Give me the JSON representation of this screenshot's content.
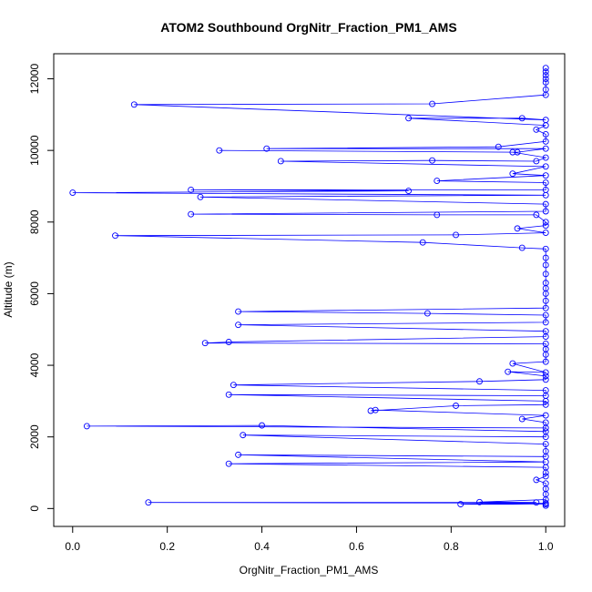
{
  "chart_data": {
    "type": "line",
    "title": "ATOM2 Southbound OrgNitr_Fraction_PM1_AMS",
    "xlabel": "OrgNitr_Fraction_PM1_AMS",
    "ylabel": "Altitude (m)",
    "xlim": [
      -0.04,
      1.04
    ],
    "ylim": [
      -500,
      12700
    ],
    "xticks": [
      0.0,
      0.2,
      0.4,
      0.6,
      0.8,
      1.0
    ],
    "xtick_labels": [
      "0.0",
      "0.2",
      "0.4",
      "0.6",
      "0.8",
      "1.0"
    ],
    "yticks": [
      0,
      2000,
      4000,
      6000,
      8000,
      10000,
      12000
    ],
    "ytick_labels": [
      "0",
      "2000",
      "4000",
      "6000",
      "8000",
      "10000",
      "12000"
    ],
    "grid": false,
    "series": [
      {
        "name": "OrgNitr_Fraction_PM1_AMS",
        "color": "#0000ff",
        "marker": "open-circle",
        "points": [
          [
            1.0,
            80
          ],
          [
            1.0,
            120
          ],
          [
            0.82,
            120
          ],
          [
            1.0,
            150
          ],
          [
            0.16,
            170
          ],
          [
            0.98,
            170
          ],
          [
            0.86,
            180
          ],
          [
            1.0,
            250
          ],
          [
            1.0,
            400
          ],
          [
            1.0,
            550
          ],
          [
            1.0,
            700
          ],
          [
            0.98,
            800
          ],
          [
            1.0,
            900
          ],
          [
            1.0,
            1000
          ],
          [
            1.0,
            1150
          ],
          [
            0.33,
            1250
          ],
          [
            1.0,
            1300
          ],
          [
            0.35,
            1500
          ],
          [
            1.0,
            1450
          ],
          [
            1.0,
            1600
          ],
          [
            1.0,
            1800
          ],
          [
            0.36,
            2050
          ],
          [
            1.0,
            2000
          ],
          [
            1.0,
            2150
          ],
          [
            0.4,
            2320
          ],
          [
            0.03,
            2300
          ],
          [
            1.0,
            2250
          ],
          [
            1.0,
            2400
          ],
          [
            0.95,
            2500
          ],
          [
            1.0,
            2600
          ],
          [
            0.64,
            2750
          ],
          [
            0.63,
            2730
          ],
          [
            0.81,
            2870
          ],
          [
            1.0,
            2900
          ],
          [
            1.0,
            3000
          ],
          [
            0.33,
            3180
          ],
          [
            1.0,
            3150
          ],
          [
            1.0,
            3300
          ],
          [
            0.34,
            3450
          ],
          [
            0.86,
            3550
          ],
          [
            1.0,
            3600
          ],
          [
            1.0,
            3700
          ],
          [
            0.92,
            3820
          ],
          [
            1.0,
            3800
          ],
          [
            0.93,
            4050
          ],
          [
            1.0,
            4100
          ],
          [
            1.0,
            4300
          ],
          [
            1.0,
            4450
          ],
          [
            1.0,
            4600
          ],
          [
            0.28,
            4620
          ],
          [
            0.33,
            4650
          ],
          [
            1.0,
            4800
          ],
          [
            1.0,
            4950
          ],
          [
            0.35,
            5130
          ],
          [
            1.0,
            5200
          ],
          [
            1.0,
            5400
          ],
          [
            0.75,
            5450
          ],
          [
            0.35,
            5500
          ],
          [
            1.0,
            5600
          ],
          [
            1.0,
            5800
          ],
          [
            1.0,
            6000
          ],
          [
            1.0,
            6150
          ],
          [
            1.0,
            6300
          ],
          [
            1.0,
            6550
          ],
          [
            1.0,
            6800
          ],
          [
            1.0,
            7000
          ],
          [
            1.0,
            7250
          ],
          [
            0.95,
            7280
          ],
          [
            0.74,
            7430
          ],
          [
            0.09,
            7620
          ],
          [
            0.81,
            7640
          ],
          [
            1.0,
            7700
          ],
          [
            0.94,
            7820
          ],
          [
            1.0,
            7900
          ],
          [
            1.0,
            8000
          ],
          [
            0.98,
            8200
          ],
          [
            0.77,
            8200
          ],
          [
            0.25,
            8220
          ],
          [
            1.0,
            8300
          ],
          [
            1.0,
            8500
          ],
          [
            0.27,
            8700
          ],
          [
            1.0,
            8750
          ],
          [
            0.0,
            8820
          ],
          [
            0.71,
            8870
          ],
          [
            0.25,
            8900
          ],
          [
            1.0,
            8900
          ],
          [
            1.0,
            9100
          ],
          [
            0.77,
            9150
          ],
          [
            1.0,
            9300
          ],
          [
            0.93,
            9350
          ],
          [
            1.0,
            9550
          ],
          [
            0.44,
            9700
          ],
          [
            0.76,
            9720
          ],
          [
            0.98,
            9700
          ],
          [
            1.0,
            9800
          ],
          [
            0.93,
            9950
          ],
          [
            0.31,
            10000
          ],
          [
            0.94,
            9950
          ],
          [
            1.0,
            10050
          ],
          [
            0.41,
            10050
          ],
          [
            0.9,
            10100
          ],
          [
            1.0,
            10250
          ],
          [
            1.0,
            10450
          ],
          [
            0.98,
            10580
          ],
          [
            1.0,
            10700
          ],
          [
            0.71,
            10900
          ],
          [
            0.95,
            10900
          ],
          [
            1.0,
            10850
          ],
          [
            0.13,
            11280
          ],
          [
            0.76,
            11300
          ],
          [
            1.0,
            11550
          ],
          [
            1.0,
            11700
          ],
          [
            1.0,
            11900
          ],
          [
            1.0,
            12000
          ],
          [
            1.0,
            12100
          ],
          [
            1.0,
            12200
          ],
          [
            1.0,
            12300
          ]
        ]
      }
    ]
  }
}
